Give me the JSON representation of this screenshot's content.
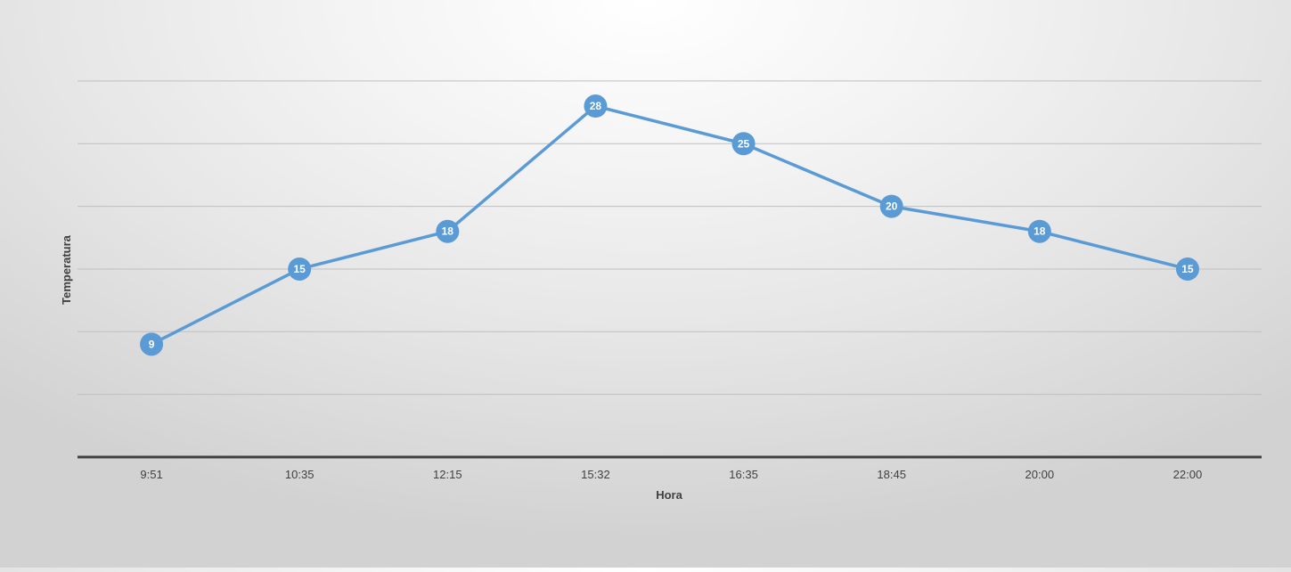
{
  "chart_data": {
    "type": "line",
    "title": "",
    "xlabel": "Hora",
    "ylabel": "Temperatura",
    "categories": [
      "9:51",
      "10:35",
      "12:15",
      "15:32",
      "16:35",
      "18:45",
      "20:00",
      "22:00"
    ],
    "series": [
      {
        "values": [
          9,
          15,
          18,
          28,
          25,
          20,
          18,
          15
        ]
      }
    ],
    "ylim": [
      0,
      30
    ],
    "ytick_step": 5,
    "grid": true,
    "legend": "none",
    "data_labels": true,
    "colors": {
      "line": "#5B9BD5",
      "marker": "#5B9BD5",
      "gridline": "#bfbfbf",
      "axis": "#404040",
      "label_text": "#ffffff"
    }
  }
}
